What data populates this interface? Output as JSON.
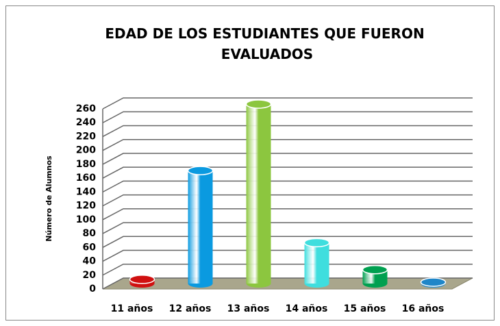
{
  "chart_data": {
    "type": "bar3d",
    "title": "EDAD DE LOS ESTUDIANTES QUE FUERON EVALUADOS",
    "y_label": "Número de Alumnos",
    "categories": [
      "11 años",
      "12 años",
      "13 años",
      "14 años",
      "15 años",
      "16 años"
    ],
    "values": [
      6,
      163,
      259,
      59,
      20,
      2
    ],
    "colors": [
      "#d01010",
      "#0a9ae0",
      "#8cc63f",
      "#3fdede",
      "#00a050",
      "#1f86c8"
    ],
    "ylim": [
      0,
      260
    ],
    "yticks": [
      0,
      20,
      40,
      60,
      80,
      100,
      120,
      140,
      160,
      180,
      200,
      220,
      240,
      260
    ],
    "grid": true
  }
}
